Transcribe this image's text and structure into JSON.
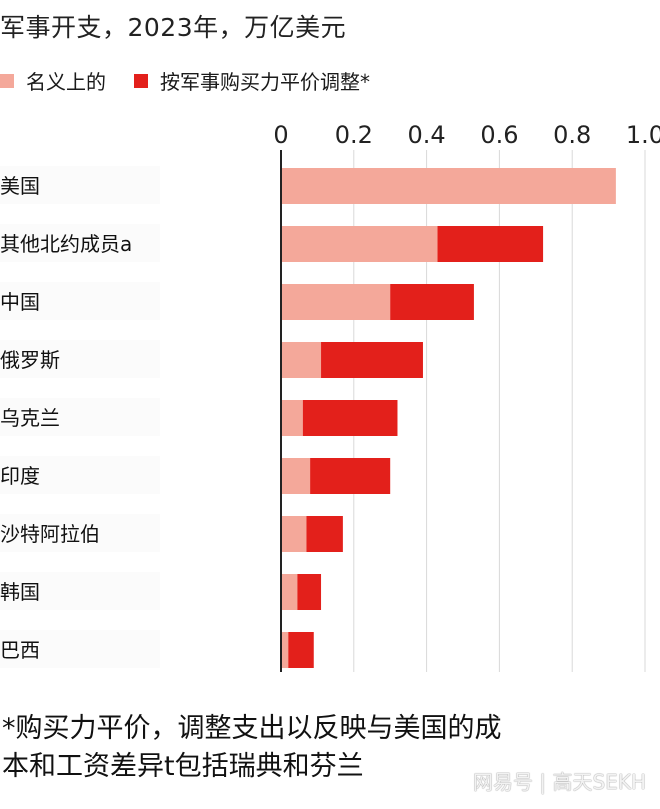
{
  "title": "军事开支，2023年，万亿美元",
  "legend": [
    {
      "label": "名义上的",
      "color": "#f4a89a"
    },
    {
      "label": "按军事购买力平价调整*",
      "color": "#e3201b"
    }
  ],
  "chart_data": {
    "type": "bar",
    "orientation": "horizontal",
    "stacked": true,
    "title": "军事开支，2023年，万亿美元",
    "categories": [
      "美国",
      "其他北约成员a",
      "中国",
      "俄罗斯",
      "乌克兰",
      "印度",
      "沙特阿拉伯",
      "韩国",
      "巴西"
    ],
    "series": [
      {
        "name": "名义上的",
        "color": "#f4a89a",
        "values": [
          0.92,
          0.43,
          0.3,
          0.11,
          0.06,
          0.08,
          0.07,
          0.045,
          0.02
        ]
      },
      {
        "name": "按军事购买力平价调整*",
        "color": "#e3201b",
        "values": [
          0.0,
          0.29,
          0.23,
          0.28,
          0.26,
          0.22,
          0.1,
          0.065,
          0.07
        ]
      }
    ],
    "xlim": [
      0,
      1.0
    ],
    "xticks": [
      "0",
      "0.2",
      "0.4",
      "0.6",
      "0.8",
      "1.0"
    ],
    "grid": true,
    "legend_position": "top-left"
  },
  "footnote": {
    "line1": "*购买力平价，调整支出以反映与美国的成",
    "line2": "本和工资差异t包括瑞典和芬兰"
  },
  "watermark": "网易号 | 高天SEKH"
}
